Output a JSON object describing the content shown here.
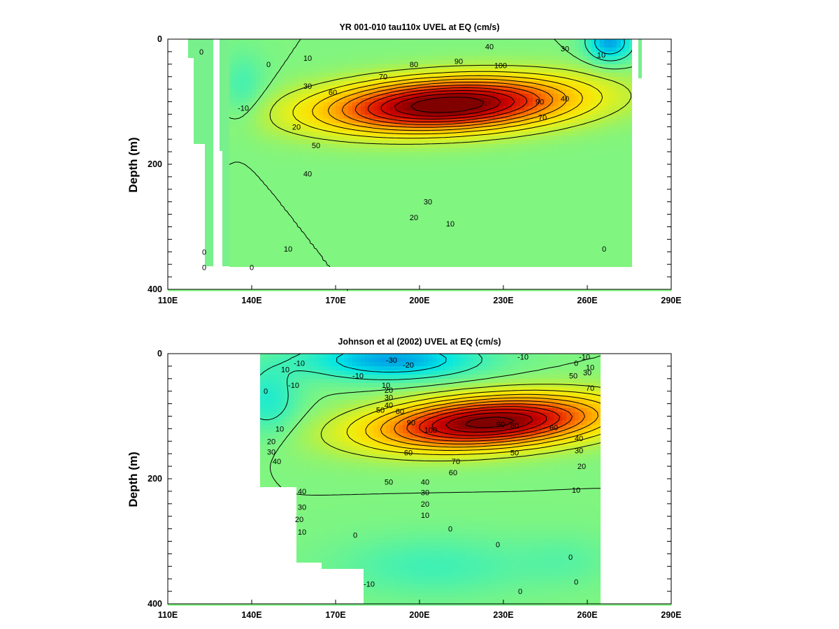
{
  "chart_data": [
    {
      "type": "contour",
      "title": "YR 001-010 tau110x UVEL at EQ (cm/s)",
      "ylabel": "Depth (m)",
      "xlabel": "",
      "xlim": [
        110,
        290
      ],
      "ylim": [
        400,
        0
      ],
      "x_ticks": [
        "110E",
        "140E",
        "170E",
        "200E",
        "230E",
        "260E",
        "290E"
      ],
      "y_ticks": [
        "0",
        "200",
        "400"
      ],
      "y_tick_values": [
        0,
        200,
        400
      ],
      "contour_interval": 10,
      "data_extent": {
        "lon": [
          128,
          278
        ],
        "depth": [
          0,
          380
        ]
      },
      "features": [
        {
          "kind": "max",
          "lon": 210,
          "depth": 105,
          "value": 110,
          "sx": 30,
          "sy": 28,
          "tilt": -0.22
        },
        {
          "kind": "min",
          "lon": 268,
          "depth": 5,
          "value": -30,
          "sx": 6,
          "sy": 22
        },
        {
          "kind": "min",
          "lon": 137,
          "depth": 80,
          "value": -10,
          "sx": 6,
          "sy": 40
        }
      ],
      "contour_labels": [
        {
          "lon": 122,
          "depth": 20,
          "text": "0"
        },
        {
          "lon": 146,
          "depth": 40,
          "text": "0"
        },
        {
          "lon": 137,
          "depth": 110,
          "text": "-10"
        },
        {
          "lon": 156,
          "depth": 140,
          "text": "20"
        },
        {
          "lon": 160,
          "depth": 30,
          "text": "10"
        },
        {
          "lon": 160,
          "depth": 75,
          "text": "30"
        },
        {
          "lon": 169,
          "depth": 85,
          "text": "60"
        },
        {
          "lon": 163,
          "depth": 170,
          "text": "50"
        },
        {
          "lon": 160,
          "depth": 215,
          "text": "40"
        },
        {
          "lon": 187,
          "depth": 60,
          "text": "70"
        },
        {
          "lon": 198,
          "depth": 40,
          "text": "80"
        },
        {
          "lon": 214,
          "depth": 35,
          "text": "90"
        },
        {
          "lon": 229,
          "depth": 42,
          "text": "100"
        },
        {
          "lon": 225,
          "depth": 12,
          "text": "40"
        },
        {
          "lon": 252,
          "depth": 15,
          "text": "30"
        },
        {
          "lon": 265,
          "depth": 25,
          "text": "10"
        },
        {
          "lon": 243,
          "depth": 100,
          "text": "90"
        },
        {
          "lon": 244,
          "depth": 125,
          "text": "70"
        },
        {
          "lon": 252,
          "depth": 95,
          "text": "40"
        },
        {
          "lon": 203,
          "depth": 260,
          "text": "30"
        },
        {
          "lon": 198,
          "depth": 285,
          "text": "20"
        },
        {
          "lon": 211,
          "depth": 295,
          "text": "10"
        },
        {
          "lon": 123,
          "depth": 340,
          "text": "0"
        },
        {
          "lon": 123,
          "depth": 365,
          "text": "0"
        },
        {
          "lon": 140,
          "depth": 365,
          "text": "0"
        },
        {
          "lon": 153,
          "depth": 335,
          "text": "10"
        },
        {
          "lon": 266,
          "depth": 335,
          "text": "0"
        }
      ]
    },
    {
      "type": "contour",
      "title": "Johnson et al (2002) UVEL at EQ (cm/s)",
      "ylabel": "Depth (m)",
      "xlabel": "",
      "xlim": [
        110,
        290
      ],
      "ylim": [
        400,
        0
      ],
      "x_ticks": [
        "110E",
        "140E",
        "170E",
        "200E",
        "230E",
        "260E",
        "290E"
      ],
      "y_ticks": [
        "0",
        "200",
        "400"
      ],
      "y_tick_values": [
        0,
        200,
        400
      ],
      "contour_interval": 10,
      "data_extent": {
        "lon": [
          143,
          265
        ],
        "depth": [
          0,
          400
        ]
      },
      "features": [
        {
          "kind": "max",
          "lon": 225,
          "depth": 110,
          "value": 105,
          "sx": 28,
          "sy": 27,
          "tilt": -0.3
        },
        {
          "kind": "min",
          "lon": 190,
          "depth": 10,
          "value": -30,
          "sx": 22,
          "sy": 22
        },
        {
          "kind": "min",
          "lon": 146,
          "depth": 75,
          "value": -15,
          "sx": 8,
          "sy": 40
        },
        {
          "kind": "min",
          "lon": 205,
          "depth": 340,
          "value": -10,
          "sx": 25,
          "sy": 35
        },
        {
          "kind": "min",
          "lon": 253,
          "depth": 330,
          "value": -5,
          "sx": 12,
          "sy": 30
        }
      ],
      "contour_labels": [
        {
          "lon": 157,
          "depth": 15,
          "text": "-10"
        },
        {
          "lon": 152,
          "depth": 25,
          "text": "10"
        },
        {
          "lon": 155,
          "depth": 50,
          "text": "-10"
        },
        {
          "lon": 145,
          "depth": 60,
          "text": "0"
        },
        {
          "lon": 190,
          "depth": 10,
          "text": "-30"
        },
        {
          "lon": 196,
          "depth": 18,
          "text": "-20"
        },
        {
          "lon": 178,
          "depth": 35,
          "text": "-10"
        },
        {
          "lon": 237,
          "depth": 5,
          "text": "-10"
        },
        {
          "lon": 259,
          "depth": 5,
          "text": "-10"
        },
        {
          "lon": 256,
          "depth": 15,
          "text": "0"
        },
        {
          "lon": 261,
          "depth": 22,
          "text": "10"
        },
        {
          "lon": 260,
          "depth": 30,
          "text": "30"
        },
        {
          "lon": 255,
          "depth": 35,
          "text": "50"
        },
        {
          "lon": 261,
          "depth": 55,
          "text": "70"
        },
        {
          "lon": 188,
          "depth": 50,
          "text": "10"
        },
        {
          "lon": 189,
          "depth": 58,
          "text": "20"
        },
        {
          "lon": 189,
          "depth": 70,
          "text": "30"
        },
        {
          "lon": 189,
          "depth": 82,
          "text": "40"
        },
        {
          "lon": 186,
          "depth": 90,
          "text": "50"
        },
        {
          "lon": 193,
          "depth": 92,
          "text": "60"
        },
        {
          "lon": 197,
          "depth": 110,
          "text": "90"
        },
        {
          "lon": 204,
          "depth": 122,
          "text": "100"
        },
        {
          "lon": 229,
          "depth": 113,
          "text": "90"
        },
        {
          "lon": 234,
          "depth": 115,
          "text": "80"
        },
        {
          "lon": 248,
          "depth": 118,
          "text": "60"
        },
        {
          "lon": 257,
          "depth": 135,
          "text": "40"
        },
        {
          "lon": 257,
          "depth": 155,
          "text": "30"
        },
        {
          "lon": 258,
          "depth": 180,
          "text": "20"
        },
        {
          "lon": 256,
          "depth": 218,
          "text": "10"
        },
        {
          "lon": 234,
          "depth": 158,
          "text": "50"
        },
        {
          "lon": 196,
          "depth": 158,
          "text": "60"
        },
        {
          "lon": 213,
          "depth": 172,
          "text": "70"
        },
        {
          "lon": 212,
          "depth": 190,
          "text": "60"
        },
        {
          "lon": 189,
          "depth": 205,
          "text": "50"
        },
        {
          "lon": 202,
          "depth": 205,
          "text": "40"
        },
        {
          "lon": 202,
          "depth": 222,
          "text": "30"
        },
        {
          "lon": 202,
          "depth": 240,
          "text": "20"
        },
        {
          "lon": 202,
          "depth": 258,
          "text": "10"
        },
        {
          "lon": 150,
          "depth": 120,
          "text": "10"
        },
        {
          "lon": 147,
          "depth": 140,
          "text": "20"
        },
        {
          "lon": 147,
          "depth": 157,
          "text": "30"
        },
        {
          "lon": 149,
          "depth": 172,
          "text": "40"
        },
        {
          "lon": 158,
          "depth": 220,
          "text": "40"
        },
        {
          "lon": 158,
          "depth": 245,
          "text": "30"
        },
        {
          "lon": 157,
          "depth": 265,
          "text": "20"
        },
        {
          "lon": 158,
          "depth": 285,
          "text": "10"
        },
        {
          "lon": 177,
          "depth": 290,
          "text": "0"
        },
        {
          "lon": 211,
          "depth": 280,
          "text": "0"
        },
        {
          "lon": 228,
          "depth": 305,
          "text": "0"
        },
        {
          "lon": 254,
          "depth": 325,
          "text": "0"
        },
        {
          "lon": 256,
          "depth": 365,
          "text": "0"
        },
        {
          "lon": 236,
          "depth": 380,
          "text": "0"
        },
        {
          "lon": 182,
          "depth": 368,
          "text": "-10"
        }
      ]
    }
  ]
}
